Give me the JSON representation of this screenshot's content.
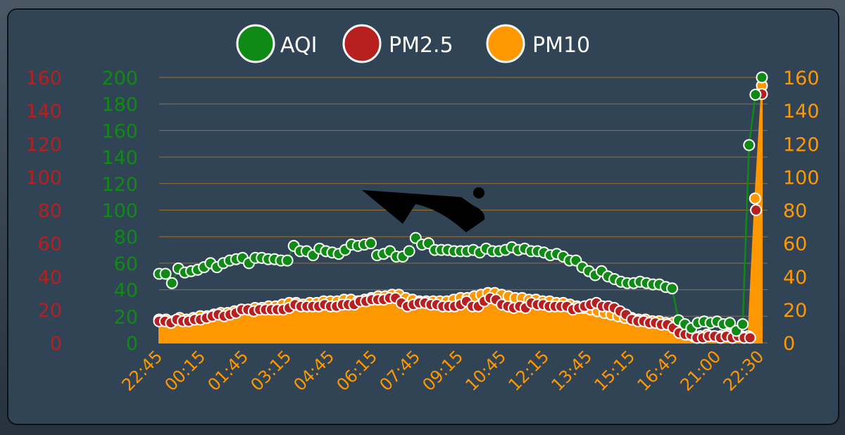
{
  "colors": {
    "aqi": "#0f8a14",
    "pm25": "#b81f1f",
    "pm10": "#ff9800",
    "grid": "#b87a25",
    "background": "#314455"
  },
  "annotation_icon": "swoosh-arrow-icon",
  "chart_data": {
    "type": "line",
    "legend": {
      "placement": "top-center",
      "entries": [
        "AQI",
        "PM2.5",
        "PM10"
      ]
    },
    "x_tick_labels": [
      "22:45",
      "00:15",
      "01:45",
      "03:15",
      "04:45",
      "06:15",
      "07:45",
      "09:15",
      "10:45",
      "12:15",
      "13:45",
      "15:15",
      "16:45",
      "21:00",
      "22:30"
    ],
    "axes": {
      "left_outer": {
        "series": "PM2.5",
        "range": [
          0,
          160
        ],
        "ticks": [
          "0",
          "20",
          "40",
          "60",
          "80",
          "100",
          "120",
          "140",
          "160"
        ]
      },
      "left_inner": {
        "series": "AQI",
        "range": [
          0,
          200
        ],
        "ticks": [
          "0",
          "20",
          "40",
          "60",
          "80",
          "100",
          "120",
          "140",
          "160",
          "180",
          "200"
        ]
      },
      "right": {
        "series": "PM10",
        "range": [
          0,
          160
        ],
        "ticks": [
          "0",
          "20",
          "40",
          "60",
          "80",
          "100",
          "120",
          "140",
          "160"
        ]
      }
    },
    "grid": true,
    "series": [
      {
        "name": "AQI",
        "axis": "left_inner",
        "style": "line-markers",
        "values": [
          52,
          52,
          45,
          56,
          53,
          54,
          55,
          57,
          60,
          57,
          60,
          62,
          63,
          64,
          60,
          64,
          64,
          63,
          63,
          62,
          62,
          73,
          69,
          69,
          66,
          71,
          69,
          68,
          67,
          70,
          74,
          73,
          74,
          75,
          66,
          67,
          69,
          65,
          65,
          69,
          79,
          74,
          75,
          70,
          70,
          70,
          69,
          69,
          69,
          70,
          68,
          71,
          69,
          69,
          70,
          72,
          70,
          71,
          69,
          69,
          68,
          66,
          67,
          65,
          62,
          62,
          57,
          54,
          51,
          54,
          50,
          48,
          46,
          45,
          45,
          46,
          45,
          44,
          44,
          42,
          41,
          17,
          14,
          11,
          15,
          16,
          15,
          16,
          14,
          15,
          9,
          14,
          149,
          187,
          200
        ]
      },
      {
        "name": "PM2.5",
        "axis": "left_outer",
        "style": "markers",
        "values": [
          13,
          13,
          12,
          14,
          13,
          13,
          14,
          14,
          15,
          16,
          17,
          16,
          17,
          18,
          20,
          20,
          19,
          20,
          20,
          20,
          20,
          20,
          21,
          23,
          22,
          22,
          22,
          22,
          23,
          22,
          22,
          23,
          23,
          23,
          25,
          25,
          26,
          26,
          26,
          27,
          27,
          24,
          22,
          23,
          24,
          24,
          23,
          23,
          22,
          22,
          22,
          23,
          25,
          22,
          22,
          25,
          27,
          26,
          23,
          22,
          21,
          22,
          21,
          24,
          23,
          23,
          22,
          22,
          22,
          22,
          20,
          21,
          22,
          23,
          24,
          22,
          22,
          21,
          19,
          17,
          14,
          13,
          13,
          12,
          12,
          11,
          11,
          9,
          6,
          5,
          5,
          3,
          3,
          4,
          4,
          3,
          4,
          3,
          4,
          3,
          3,
          80,
          150
        ]
      },
      {
        "name": "PM10",
        "axis": "right",
        "style": "area-markers",
        "values": [
          14,
          14,
          13,
          15,
          14,
          15,
          16,
          16,
          17,
          18,
          18,
          19,
          20,
          20,
          21,
          21,
          22,
          22,
          23,
          24,
          24,
          23,
          24,
          24,
          25,
          25,
          25,
          26,
          26,
          25,
          26,
          27,
          28,
          28,
          29,
          29,
          27,
          26,
          25,
          25,
          25,
          25,
          25,
          26,
          27,
          27,
          28,
          29,
          30,
          30,
          29,
          28,
          27,
          27,
          26,
          26,
          25,
          25,
          24,
          24,
          23,
          22,
          21,
          20,
          19,
          18,
          17,
          16,
          15,
          15,
          14,
          14,
          13,
          13,
          12,
          12,
          11,
          5,
          4,
          4,
          5,
          4,
          4,
          5,
          5,
          4,
          4,
          87,
          155
        ]
      }
    ]
  }
}
